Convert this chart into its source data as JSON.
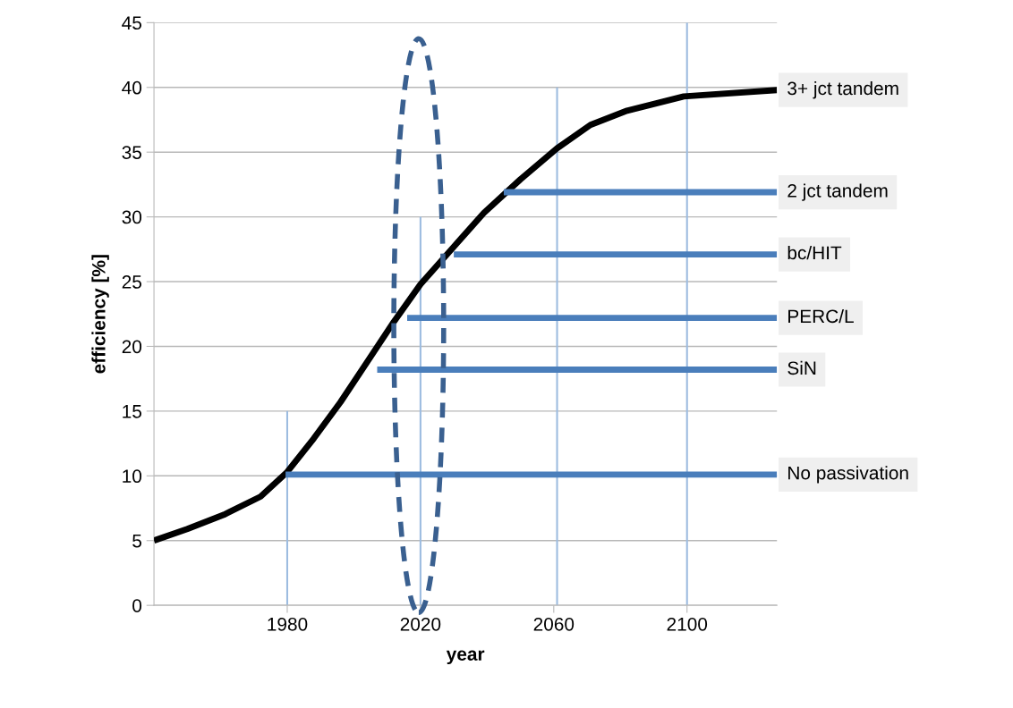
{
  "chart_data": {
    "type": "line",
    "xlabel": "year",
    "ylabel": "efficiency [%]",
    "xlim": [
      1940,
      2127
    ],
    "xticks": [
      1980,
      2020,
      2060,
      2100
    ],
    "ylim": [
      0,
      45
    ],
    "yticks": [
      0,
      5,
      10,
      15,
      20,
      25,
      30,
      35,
      40,
      45
    ],
    "grid": "y",
    "legend": false,
    "marker": "none",
    "line_style": "solid",
    "series": [
      {
        "name": "3+ jct tandem",
        "color": "#000000",
        "x": [
          1940,
          1950,
          1961,
          1972,
          1980,
          1988,
          1996,
          2004,
          2012,
          2020,
          2030,
          2039,
          2050,
          2061,
          2071,
          2082,
          2099,
          2127
        ],
        "values": [
          5.0,
          5.9,
          7.0,
          8.4,
          10.3,
          12.9,
          15.7,
          18.8,
          21.9,
          24.8,
          27.7,
          30.3,
          32.9,
          35.3,
          37.1,
          38.2,
          39.3,
          39.8
        ]
      },
      {
        "name": "2 jct tandem",
        "color": "#4a7ebb",
        "x": [
          2045,
          2127
        ],
        "values": [
          31.9,
          31.9
        ]
      },
      {
        "name": "bc/HIT",
        "color": "#4a7ebb",
        "x": [
          2030,
          2127
        ],
        "values": [
          27.1,
          27.1
        ]
      },
      {
        "name": "PERC/L",
        "color": "#4a7ebb",
        "x": [
          2016,
          2127
        ],
        "values": [
          22.2,
          22.2
        ]
      },
      {
        "name": "SiN",
        "color": "#4a7ebb",
        "x": [
          2007,
          2127
        ],
        "values": [
          18.2,
          18.2
        ]
      },
      {
        "name": "No passivation",
        "color": "#4a7ebb",
        "x": [
          1979.5,
          2127
        ],
        "values": [
          10.1,
          10.1
        ]
      },
      {
        "color": "#9dbce0",
        "x": [
          1980,
          1980
        ],
        "values": [
          0,
          15
        ]
      },
      {
        "color": "#9dbce0",
        "x": [
          2020,
          2020
        ],
        "values": [
          0,
          30
        ]
      },
      {
        "color": "#9dbce0",
        "x": [
          2061,
          2061
        ],
        "values": [
          0,
          40
        ]
      },
      {
        "color": "#9dbce0",
        "x": [
          2100,
          2100
        ],
        "values": [
          0,
          45
        ]
      }
    ]
  }
}
